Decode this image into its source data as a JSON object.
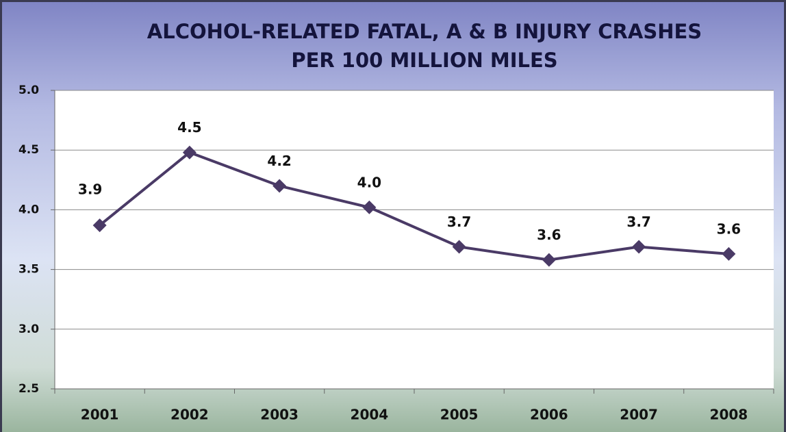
{
  "chart_data": {
    "type": "line",
    "title": [
      "ALCOHOL-RELATED FATAL, A & B INJURY CRASHES",
      "PER 100 MILLION MILES"
    ],
    "categories": [
      "2001",
      "2002",
      "2003",
      "2004",
      "2005",
      "2006",
      "2007",
      "2008"
    ],
    "values": [
      3.87,
      4.48,
      4.2,
      4.02,
      3.69,
      3.58,
      3.69,
      3.63
    ],
    "value_labels": [
      "3.9",
      "4.5",
      "4.2",
      "4.0",
      "3.7",
      "3.6",
      "3.7",
      "3.6"
    ],
    "color": "#4a3a66",
    "ylim": [
      2.5,
      5
    ],
    "yticks": [
      2.5,
      {
        "value": 3,
        "label": "3.0"
      },
      3.5,
      {
        "value": 4,
        "label": "4.0"
      },
      4.5,
      {
        "value": 5,
        "label": "5.0"
      }
    ],
    "grid": true
  }
}
